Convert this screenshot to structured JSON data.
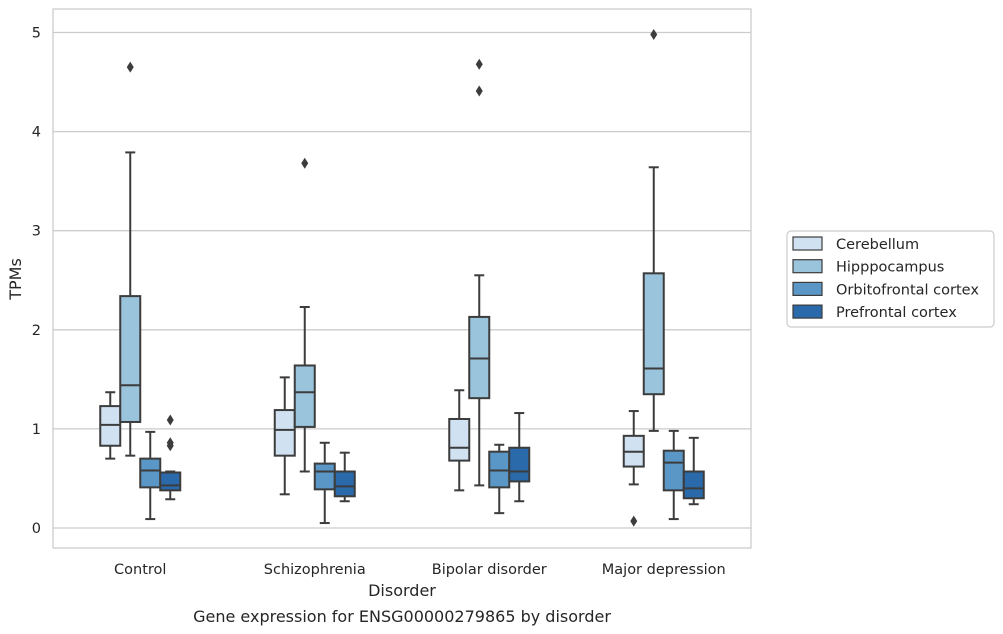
{
  "chart_data": {
    "type": "box",
    "title": "",
    "caption": "Gene expression for ENSG00000279865 by disorder",
    "xlabel": "Disorder",
    "ylabel": "TPMs",
    "ylim": [
      -0.2,
      5.25
    ],
    "yticks": [
      0,
      1,
      2,
      3,
      4,
      5
    ],
    "grid": "horizontal",
    "legend_position": "right",
    "categories": [
      "Control",
      "Schizophrenia",
      "Bipolar disorder",
      "Major depression"
    ],
    "series": [
      {
        "name": "Cerebellum",
        "color": "#d0e2f2",
        "boxes": [
          {
            "whisker_low": 0.7,
            "q1": 0.83,
            "median": 1.04,
            "q3": 1.23,
            "whisker_high": 1.37,
            "outliers": []
          },
          {
            "whisker_low": 0.34,
            "q1": 0.73,
            "median": 0.99,
            "q3": 1.19,
            "whisker_high": 1.52,
            "outliers": []
          },
          {
            "whisker_low": 0.38,
            "q1": 0.68,
            "median": 0.81,
            "q3": 1.1,
            "whisker_high": 1.39,
            "outliers": []
          },
          {
            "whisker_low": 0.44,
            "q1": 0.62,
            "median": 0.77,
            "q3": 0.93,
            "whisker_high": 1.18,
            "outliers": [
              0.07
            ]
          }
        ]
      },
      {
        "name": "Hipppocampus",
        "color": "#9ac3dc",
        "boxes": [
          {
            "whisker_low": 0.73,
            "q1": 1.07,
            "median": 1.44,
            "q3": 2.34,
            "whisker_high": 3.79,
            "outliers": [
              4.65
            ]
          },
          {
            "whisker_low": 0.57,
            "q1": 1.02,
            "median": 1.37,
            "q3": 1.64,
            "whisker_high": 2.23,
            "outliers": [
              3.68
            ]
          },
          {
            "whisker_low": 0.43,
            "q1": 1.31,
            "median": 1.71,
            "q3": 2.13,
            "whisker_high": 2.55,
            "outliers": [
              4.41,
              4.68
            ]
          },
          {
            "whisker_low": 0.98,
            "q1": 1.35,
            "median": 1.61,
            "q3": 2.57,
            "whisker_high": 3.64,
            "outliers": [
              4.98
            ]
          }
        ]
      },
      {
        "name": "Orbitofrontal cortex",
        "color": "#5a97c6",
        "boxes": [
          {
            "whisker_low": 0.09,
            "q1": 0.41,
            "median": 0.58,
            "q3": 0.7,
            "whisker_high": 0.97,
            "outliers": []
          },
          {
            "whisker_low": 0.05,
            "q1": 0.39,
            "median": 0.57,
            "q3": 0.65,
            "whisker_high": 0.86,
            "outliers": []
          },
          {
            "whisker_low": 0.15,
            "q1": 0.41,
            "median": 0.58,
            "q3": 0.77,
            "whisker_high": 0.84,
            "outliers": []
          },
          {
            "whisker_low": 0.09,
            "q1": 0.38,
            "median": 0.66,
            "q3": 0.78,
            "whisker_high": 0.98,
            "outliers": []
          }
        ]
      },
      {
        "name": "Prefrontal cortex",
        "color": "#2a6aab",
        "boxes": [
          {
            "whisker_low": 0.29,
            "q1": 0.38,
            "median": 0.43,
            "q3": 0.56,
            "whisker_high": 0.57,
            "outliers": [
              0.83,
              0.86,
              1.09
            ]
          },
          {
            "whisker_low": 0.27,
            "q1": 0.32,
            "median": 0.42,
            "q3": 0.57,
            "whisker_high": 0.76,
            "outliers": []
          },
          {
            "whisker_low": 0.27,
            "q1": 0.47,
            "median": 0.57,
            "q3": 0.81,
            "whisker_high": 1.16,
            "outliers": []
          },
          {
            "whisker_low": 0.24,
            "q1": 0.3,
            "median": 0.4,
            "q3": 0.57,
            "whisker_high": 0.91,
            "outliers": []
          }
        ]
      }
    ]
  }
}
